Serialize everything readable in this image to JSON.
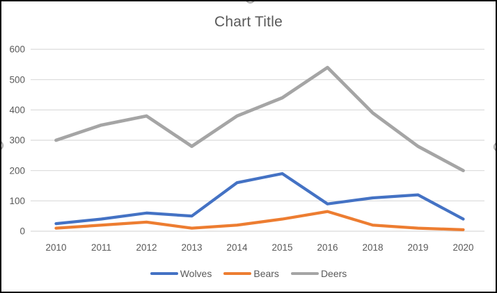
{
  "chart_data": {
    "type": "line",
    "title": "Chart Title",
    "categories": [
      "2010",
      "2011",
      "2012",
      "2013",
      "2014",
      "2015",
      "2016",
      "2018",
      "2019",
      "2020"
    ],
    "series": [
      {
        "name": "Wolves",
        "color": "#4472C4",
        "stroke_width": 4.25,
        "values": [
          25,
          40,
          60,
          50,
          160,
          190,
          90,
          110,
          120,
          40
        ]
      },
      {
        "name": "Bears",
        "color": "#ED7D31",
        "stroke_width": 4.25,
        "values": [
          10,
          20,
          30,
          10,
          20,
          40,
          65,
          20,
          10,
          5
        ]
      },
      {
        "name": "Deers",
        "color": "#A5A5A5",
        "stroke_width": 4.75,
        "values": [
          300,
          350,
          380,
          280,
          380,
          440,
          540,
          390,
          280,
          200
        ]
      }
    ],
    "xlabel": "",
    "ylabel": "",
    "ylim": [
      0,
      600
    ],
    "yticks": [
      0,
      100,
      200,
      300,
      400,
      500,
      600
    ],
    "grid": true,
    "legend_position": "bottom",
    "colors": {
      "gridline": "#D9D9D9",
      "axis_label": "#595959",
      "title": "#595959",
      "background": "#FFFFFF",
      "frame_border": "#000000",
      "selection_handle": "#A6A6A6"
    }
  }
}
